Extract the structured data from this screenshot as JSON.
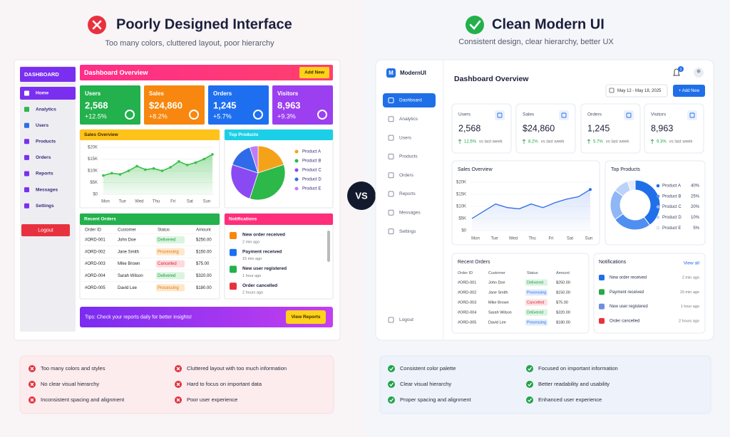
{
  "left": {
    "heading": "Poorly Designed Interface",
    "subheading": "Too many colors, cluttered layout, poor hierarchy",
    "sidebar": {
      "title": "DASHBOARD",
      "items": [
        "Home",
        "Analytics",
        "Users",
        "Products",
        "Orders",
        "Reports",
        "Messages",
        "Settings"
      ],
      "logout": "Logout"
    },
    "header": {
      "title": "Dashboard Overview",
      "button": "Add New"
    },
    "stats": [
      {
        "label": "Users",
        "value": "2,568",
        "change": "+12.5%"
      },
      {
        "label": "Sales",
        "value": "$24,860",
        "change": "+8.2%"
      },
      {
        "label": "Orders",
        "value": "1,245",
        "change": "+5.7%"
      },
      {
        "label": "Visitors",
        "value": "8,963",
        "change": "+9.3%"
      }
    ],
    "sales": {
      "title": "Sales Overview",
      "days": [
        "Mon",
        "Tue",
        "Wed",
        "Thu",
        "Fri",
        "Sat",
        "Sun"
      ],
      "ylim": [
        0,
        20000
      ],
      "yticks": [
        {
          "value": 0,
          "label": "$0"
        },
        {
          "value": 5000,
          "label": "$5K"
        },
        {
          "value": 10000,
          "label": "$10K"
        },
        {
          "value": 15000,
          "label": "$15K"
        },
        {
          "value": 20000,
          "label": "$20K"
        }
      ],
      "values": [
        8000,
        9000,
        8500,
        10000,
        12000,
        10500,
        11000,
        10000,
        11500,
        14000,
        12500,
        13500,
        15000,
        17000
      ],
      "color": "#3bbf4a"
    },
    "products": {
      "title": "Top Products",
      "items": [
        "Product A",
        "Product B",
        "Product C",
        "Product D",
        "Product E"
      ],
      "values": [
        20,
        35,
        25,
        15,
        5
      ],
      "colors": [
        "#f5a21b",
        "#2db84a",
        "#8a4af3",
        "#2f6be8",
        "#c07cf7"
      ]
    },
    "orders": {
      "title": "Recent Orders",
      "columns": [
        "Order ID",
        "Customer",
        "Status",
        "Amount"
      ],
      "rows": [
        [
          "#ORD-001",
          "John Doe",
          "Delivered",
          "$250.00"
        ],
        [
          "#ORD-002",
          "Jane Smith",
          "Processing",
          "$150.00"
        ],
        [
          "#ORD-003",
          "Mike Brown",
          "Cancelled",
          "$75.00"
        ],
        [
          "#ORD-004",
          "Sarah Wilson",
          "Delivered",
          "$320.00"
        ],
        [
          "#ORD-005",
          "David Lee",
          "Processing",
          "$180.00"
        ]
      ]
    },
    "notifications": {
      "title": "Notifications",
      "items": [
        {
          "text": "New order received",
          "time": "2 min ago"
        },
        {
          "text": "Payment received",
          "time": "15 min ago"
        },
        {
          "text": "New user registered",
          "time": "1 hour ago"
        },
        {
          "text": "Order cancelled",
          "time": "2 hours ago"
        }
      ]
    },
    "tip": {
      "text": "Tips: Check your reports daily for better insights!",
      "button": "View Reports"
    }
  },
  "vs": "VS",
  "right": {
    "heading": "Clean Modern UI",
    "subheading": "Consistent design, clear hierarchy, better UX",
    "sidebar": {
      "logo": "M",
      "title": "ModernUI",
      "items": [
        "Dashboard",
        "Analytics",
        "Users",
        "Products",
        "Orders",
        "Reports",
        "Messages",
        "Settings"
      ],
      "logout": "Logout"
    },
    "header": {
      "title": "Dashboard Overview",
      "badge": "3",
      "date": "May 12 - May 18, 2025",
      "button": "+ Add New"
    },
    "stats": [
      {
        "label": "Users",
        "value": "2,568",
        "change": "12.5%",
        "note": "vs last week"
      },
      {
        "label": "Sales",
        "value": "$24,860",
        "change": "8.2%",
        "note": "vs last week"
      },
      {
        "label": "Orders",
        "value": "1,245",
        "change": "5.7%",
        "note": "vs last week"
      },
      {
        "label": "Visitors",
        "value": "8,963",
        "change": "9.3%",
        "note": "vs last week"
      }
    ],
    "sales": {
      "title": "Sales Overview",
      "days": [
        "Mon",
        "Tue",
        "Wed",
        "Thu",
        "Fri",
        "Sat",
        "Sun"
      ],
      "ylim": [
        0,
        20000
      ],
      "yticks": [
        {
          "value": 0,
          "label": "$0"
        },
        {
          "value": 5000,
          "label": "$5K"
        },
        {
          "value": 10000,
          "label": "$10K"
        },
        {
          "value": 15000,
          "label": "$15K"
        },
        {
          "value": 20000,
          "label": "$20K"
        }
      ],
      "values": [
        5000,
        8000,
        11000,
        9500,
        9000,
        11000,
        9500,
        11500,
        13000,
        14000,
        17000
      ],
      "color": "#2f6be8"
    },
    "products": {
      "title": "Top Products",
      "items": [
        "Product A",
        "Product B",
        "Product C",
        "Product D",
        "Product E"
      ],
      "values": [
        {
          "value": 40,
          "label": "40%"
        },
        {
          "value": 25,
          "label": "25%"
        },
        {
          "value": 20,
          "label": "20%"
        },
        {
          "value": 10,
          "label": "10%"
        },
        {
          "value": 5,
          "label": "5%"
        }
      ],
      "colors": [
        "#1f6fe8",
        "#4f8ff0",
        "#8fb6f5",
        "#bcd2f8",
        "#e3ecfb"
      ]
    },
    "orders": {
      "title": "Recent Orders",
      "columns": [
        "Order ID",
        "Customer",
        "Status",
        "Amount"
      ],
      "rows": [
        [
          "#ORD-001",
          "John Doe",
          "Delivered",
          "$250.00"
        ],
        [
          "#ORD-002",
          "Jane Smith",
          "Processing",
          "$150.00"
        ],
        [
          "#ORD-003",
          "Mike Brown",
          "Cancelled",
          "$75.00"
        ],
        [
          "#ORD-004",
          "Sarah Wilson",
          "Delivered",
          "$320.00"
        ],
        [
          "#ORD-005",
          "David Lee",
          "Processing",
          "$180.00"
        ]
      ]
    },
    "notifications": {
      "title": "Notifications",
      "link": "View all",
      "items": [
        {
          "text": "New order received",
          "time": "2 min ago"
        },
        {
          "text": "Payment received",
          "time": "15 min ago"
        },
        {
          "text": "New user registered",
          "time": "1 hour ago"
        },
        {
          "text": "Order cancelled",
          "time": "2 hours ago"
        }
      ]
    }
  },
  "cons": [
    "Too many colors and styles",
    "Cluttered layout with too much information",
    "No clear visual hierarchy",
    "Hard to focus on important data",
    "Inconsistent spacing and alignment",
    "Poor user experience"
  ],
  "pros": [
    "Consistent color palette",
    "Focused on important information",
    "Clear visual hierarchy",
    "Better readability and usability",
    "Proper spacing and alignment",
    "Enhanced user experience"
  ]
}
